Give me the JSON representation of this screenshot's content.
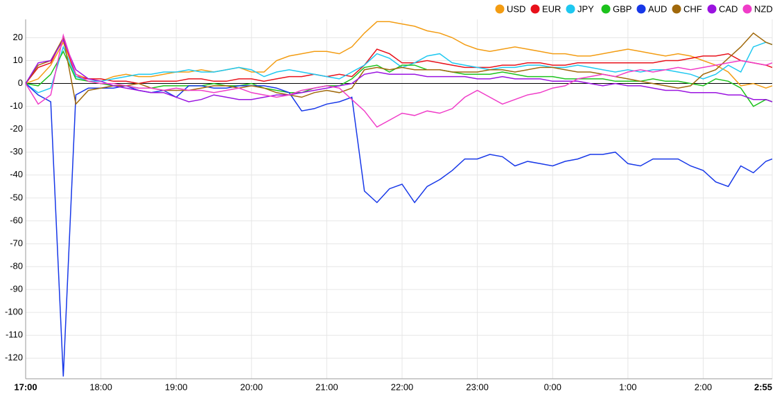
{
  "chart_data": {
    "type": "line",
    "x": [
      "17:00",
      "17:10",
      "17:20",
      "17:30",
      "17:40",
      "17:50",
      "18:00",
      "18:10",
      "18:20",
      "18:30",
      "18:40",
      "18:50",
      "19:00",
      "19:10",
      "19:20",
      "19:30",
      "19:40",
      "19:50",
      "20:00",
      "20:10",
      "20:20",
      "20:30",
      "20:40",
      "20:50",
      "21:00",
      "21:10",
      "21:20",
      "21:30",
      "21:40",
      "21:50",
      "22:00",
      "22:10",
      "22:20",
      "22:30",
      "22:40",
      "22:50",
      "23:00",
      "23:10",
      "23:20",
      "23:30",
      "23:40",
      "23:50",
      "0:00",
      "0:10",
      "0:20",
      "0:30",
      "0:40",
      "0:50",
      "1:00",
      "1:10",
      "1:20",
      "1:30",
      "1:40",
      "1:50",
      "2:00",
      "2:10",
      "2:20",
      "2:30",
      "2:40",
      "2:50",
      "2:55"
    ],
    "series": [
      {
        "name": "USD",
        "color": "#f39c12",
        "values": [
          0,
          2,
          8,
          18,
          4,
          2,
          1,
          3,
          4,
          3,
          3,
          4,
          5,
          5,
          6,
          5,
          6,
          7,
          5,
          5,
          10,
          12,
          13,
          14,
          14,
          13,
          16,
          22,
          27,
          27,
          26,
          25,
          23,
          22,
          20,
          17,
          15,
          14,
          15,
          16,
          15,
          14,
          13,
          13,
          12,
          12,
          13,
          14,
          15,
          14,
          13,
          12,
          13,
          12,
          10,
          8,
          5,
          -1,
          0,
          -2,
          -1
        ]
      },
      {
        "name": "EUR",
        "color": "#e8101a",
        "values": [
          0,
          7,
          9,
          20,
          3,
          2,
          2,
          1,
          1,
          0,
          1,
          1,
          1,
          2,
          2,
          1,
          1,
          2,
          2,
          1,
          2,
          3,
          3,
          4,
          3,
          4,
          3,
          8,
          15,
          13,
          9,
          9,
          10,
          9,
          8,
          7,
          7,
          7,
          8,
          8,
          9,
          9,
          8,
          8,
          9,
          9,
          9,
          9,
          9,
          9,
          9,
          10,
          10,
          11,
          12,
          12,
          13,
          10,
          9,
          8,
          7
        ]
      },
      {
        "name": "JPY",
        "color": "#1ec8f0",
        "values": [
          0,
          -4,
          -2,
          16,
          3,
          1,
          1,
          2,
          3,
          4,
          4,
          5,
          5,
          6,
          5,
          5,
          6,
          7,
          6,
          3,
          5,
          6,
          5,
          4,
          3,
          2,
          5,
          8,
          13,
          11,
          7,
          9,
          12,
          13,
          9,
          8,
          7,
          6,
          7,
          7,
          8,
          8,
          7,
          7,
          8,
          7,
          6,
          5,
          6,
          5,
          6,
          6,
          5,
          4,
          2,
          4,
          8,
          5,
          16,
          18,
          17
        ]
      },
      {
        "name": "GBP",
        "color": "#1cc21c",
        "values": [
          0,
          -1,
          4,
          14,
          2,
          1,
          0,
          -1,
          -1,
          -2,
          -2,
          -1,
          -1,
          -1,
          -1,
          0,
          -1,
          -1,
          0,
          -2,
          -3,
          -4,
          -4,
          -2,
          -1,
          -1,
          2,
          7,
          8,
          5,
          8,
          8,
          6,
          6,
          5,
          4,
          4,
          4,
          5,
          4,
          3,
          3,
          3,
          2,
          2,
          2,
          2,
          1,
          1,
          1,
          2,
          1,
          1,
          0,
          -1,
          2,
          1,
          -2,
          -10,
          -7,
          -8
        ]
      },
      {
        "name": "AUD",
        "color": "#1637e8",
        "values": [
          0,
          -5,
          -8,
          -128,
          -5,
          -2,
          -2,
          -2,
          -1,
          -3,
          -4,
          -3,
          -6,
          -1,
          -1,
          -2,
          -2,
          -1,
          -1,
          -1,
          -2,
          -4,
          -12,
          -11,
          -9,
          -8,
          -6,
          -47,
          -52,
          -46,
          -44,
          -52,
          -45,
          -42,
          -38,
          -33,
          -33,
          -31,
          -32,
          -36,
          -34,
          -35,
          -36,
          -34,
          -33,
          -31,
          -31,
          -30,
          -35,
          -36,
          -33,
          -33,
          -33,
          -36,
          -38,
          -43,
          -45,
          -36,
          -39,
          -34,
          -33
        ]
      },
      {
        "name": "CHF",
        "color": "#a0680a",
        "values": [
          0,
          8,
          10,
          20,
          -9,
          -3,
          -2,
          -1,
          -1,
          0,
          -2,
          -3,
          -3,
          -3,
          -2,
          -1,
          -1,
          -2,
          -1,
          -2,
          -4,
          -5,
          -6,
          -4,
          -3,
          -4,
          -2,
          6,
          7,
          6,
          7,
          6,
          6,
          6,
          5,
          5,
          5,
          6,
          6,
          5,
          6,
          7,
          7,
          6,
          5,
          5,
          4,
          3,
          2,
          1,
          0,
          -1,
          -2,
          -1,
          4,
          6,
          11,
          16,
          22,
          18,
          17
        ]
      },
      {
        "name": "CAD",
        "color": "#9a12e0",
        "values": [
          0,
          9,
          10,
          19,
          6,
          2,
          1,
          -1,
          -2,
          -3,
          -4,
          -4,
          -6,
          -8,
          -7,
          -5,
          -6,
          -7,
          -7,
          -6,
          -5,
          -5,
          -4,
          -3,
          -2,
          -1,
          0,
          4,
          5,
          4,
          4,
          4,
          3,
          3,
          3,
          3,
          2,
          2,
          3,
          2,
          2,
          2,
          1,
          1,
          1,
          0,
          -1,
          0,
          -1,
          -1,
          -2,
          -3,
          -3,
          -4,
          -4,
          -4,
          -5,
          -5,
          -7,
          -7,
          -8
        ]
      },
      {
        "name": "NZD",
        "color": "#f03cc8",
        "values": [
          0,
          -9,
          -5,
          21,
          4,
          1,
          0,
          0,
          -1,
          -2,
          -2,
          -3,
          -2,
          -3,
          -3,
          -4,
          -3,
          -2,
          -4,
          -5,
          -6,
          -5,
          -3,
          -2,
          -1,
          -2,
          -7,
          -12,
          -19,
          -16,
          -13,
          -14,
          -12,
          -13,
          -11,
          -6,
          -3,
          -6,
          -9,
          -7,
          -5,
          -4,
          -2,
          -1,
          2,
          3,
          4,
          3,
          5,
          6,
          5,
          6,
          7,
          6,
          7,
          8,
          9,
          10,
          9,
          8,
          9
        ]
      }
    ],
    "ylim": [
      -129,
      28
    ],
    "yticks": [
      -120,
      -110,
      -100,
      -90,
      -80,
      -70,
      -60,
      -50,
      -40,
      -30,
      -20,
      -10,
      0,
      10,
      20
    ],
    "xticks": [
      "17:00",
      "18:00",
      "19:00",
      "20:00",
      "21:00",
      "22:00",
      "23:00",
      "0:00",
      "1:00",
      "2:00",
      "2:55"
    ],
    "grid": true,
    "zero_line": true,
    "legend": "top-right"
  }
}
